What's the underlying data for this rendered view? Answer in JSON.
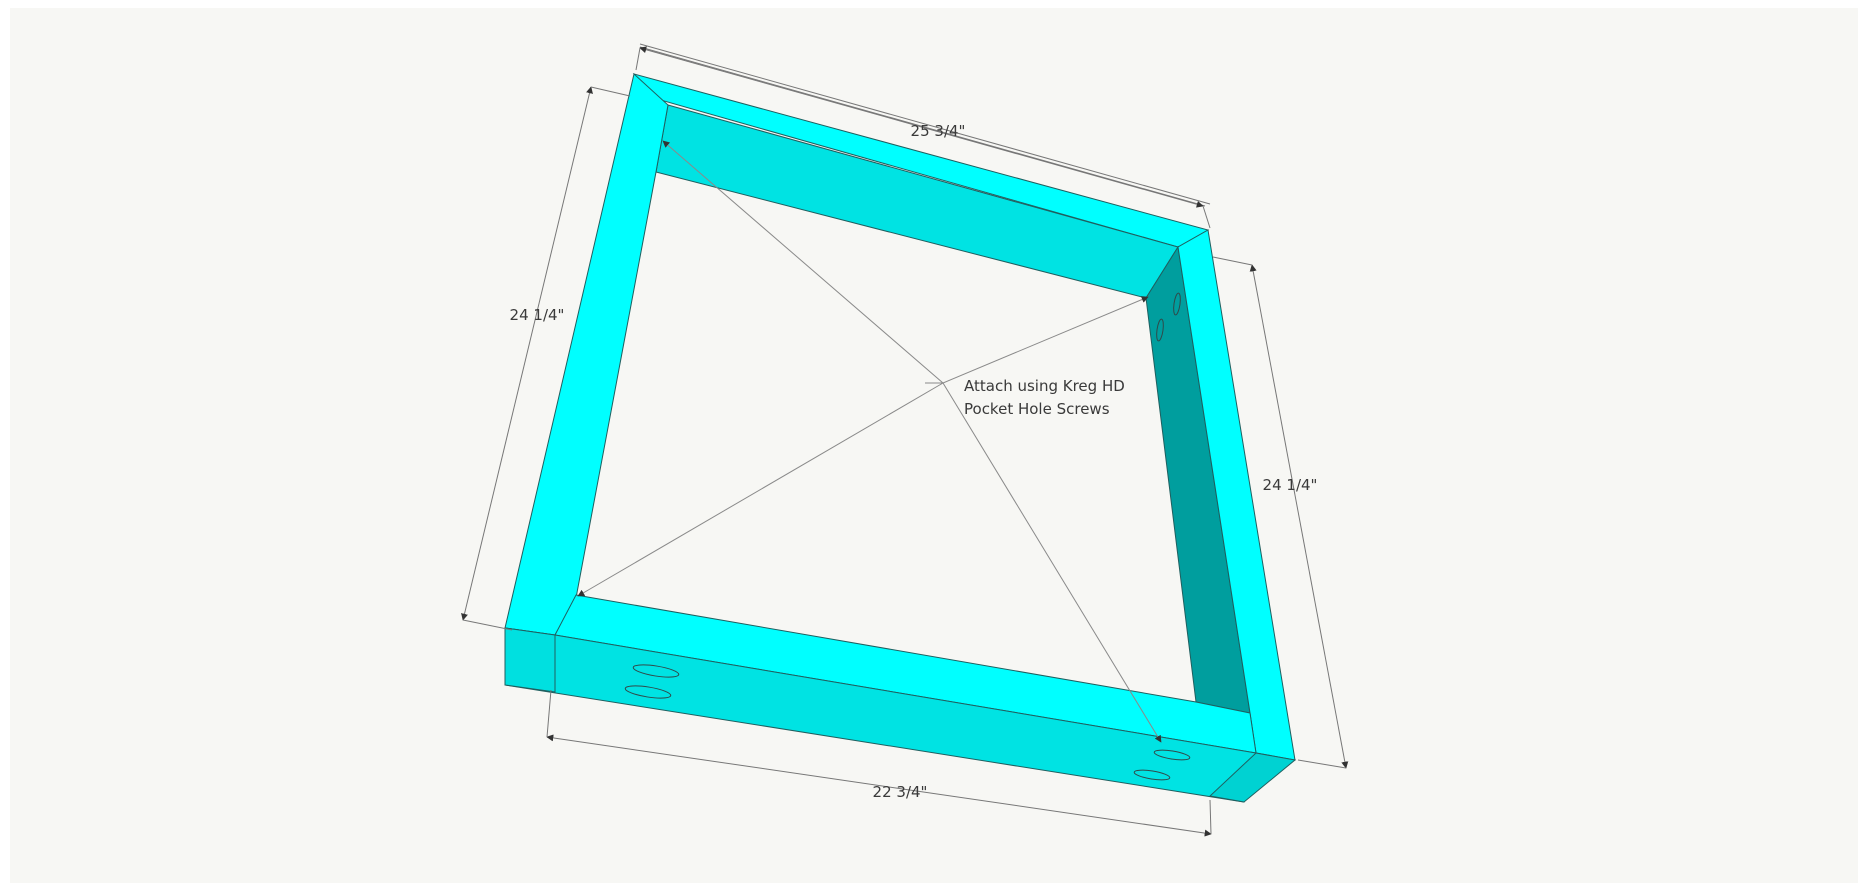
{
  "diagram": {
    "dimensions": {
      "top": "25 3/4\"",
      "left": "24 1/4\"",
      "right": "24 1/4\"",
      "bottom": "22 3/4\""
    },
    "note": {
      "line1": "Attach using Kreg HD",
      "line2": "Pocket Hole Screws"
    },
    "colors": {
      "board_top_face": "#00ffff",
      "board_side_face": "#00e3e3",
      "board_inner_dark": "#009e9e",
      "background": "#f7f7f4"
    }
  }
}
